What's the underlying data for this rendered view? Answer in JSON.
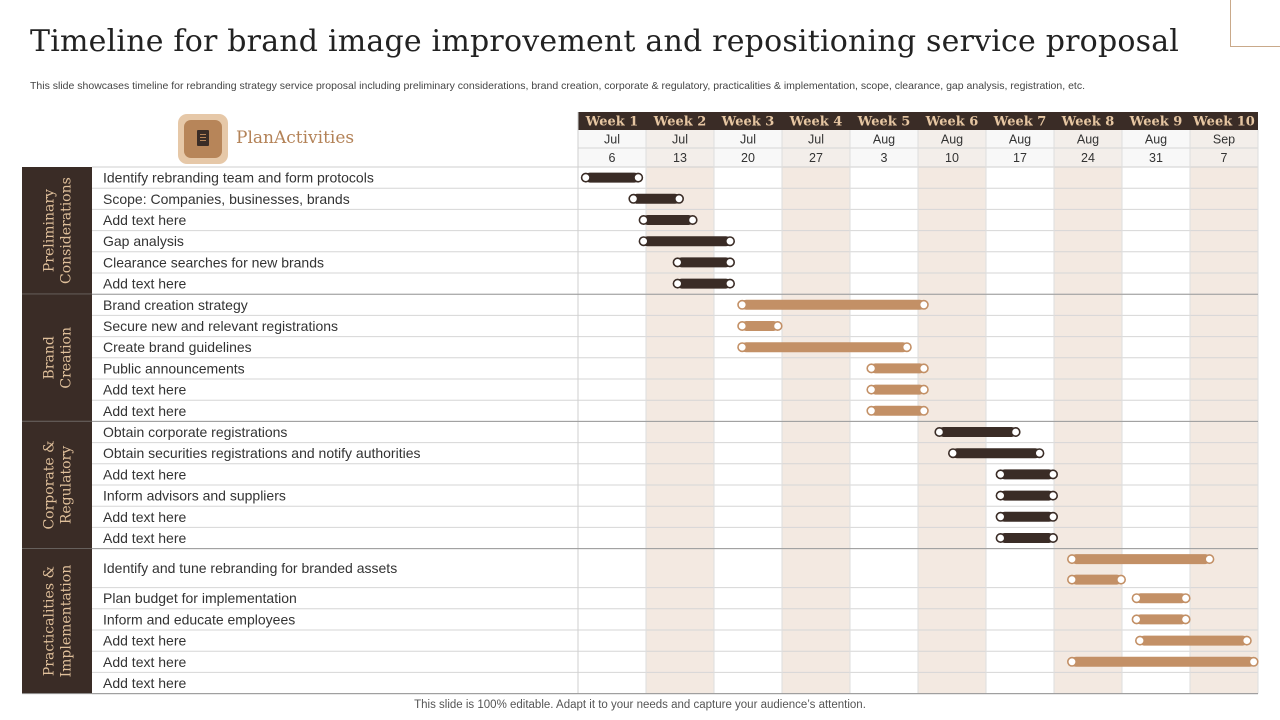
{
  "title": "Timeline for brand image improvement and repositioning service proposal",
  "subtitle": "This slide showcases timeline for rebranding strategy service proposal including preliminary considerations, brand creation, corporate & regulatory, practicalities & implementation, scope, clearance, gap analysis, registration, etc.",
  "plan_label": "PlanActivities",
  "plan_icon": "document-icon",
  "footer": "This slide is 100% editable. Adapt it to your needs and capture your audience’s attention.",
  "colors": {
    "dark": "#3a2c26",
    "accent": "#c39066",
    "shade": "#f3e9e1",
    "category_text": "#e0c09b"
  },
  "weeks": [
    {
      "label": "Week 1",
      "month": "Jul",
      "day": "6"
    },
    {
      "label": "Week 2",
      "month": "Jul",
      "day": "13"
    },
    {
      "label": "Week 3",
      "month": "Jul",
      "day": "20"
    },
    {
      "label": "Week 4",
      "month": "Jul",
      "day": "27"
    },
    {
      "label": "Week 5",
      "month": "Aug",
      "day": "3"
    },
    {
      "label": "Week 6",
      "month": "Aug",
      "day": "10"
    },
    {
      "label": "Week 7",
      "month": "Aug",
      "day": "17"
    },
    {
      "label": "Week 8",
      "month": "Aug",
      "day": "24"
    },
    {
      "label": "Week 9",
      "month": "Aug",
      "day": "31"
    },
    {
      "label": "Week 10",
      "month": "Sep",
      "day": "7"
    }
  ],
  "categories": [
    {
      "name": "Preliminary Considerations",
      "name_lines": [
        "Preliminary",
        "Considerations"
      ],
      "style": "dark",
      "tasks": [
        {
          "label": "Identify rebranding team and form protocols",
          "start": 1.1,
          "end": 1.9
        },
        {
          "label": "Scope: Companies, businesses, brands",
          "start": 1.8,
          "end": 2.5
        },
        {
          "label": "Add text here",
          "start": 1.95,
          "end": 2.7
        },
        {
          "label": "Gap analysis",
          "start": 1.95,
          "end": 3.25
        },
        {
          "label": "Clearance searches for new brands",
          "start": 2.45,
          "end": 3.25
        },
        {
          "label": "Add text here",
          "start": 2.45,
          "end": 3.25
        }
      ]
    },
    {
      "name": "Brand Creation",
      "name_lines": [
        "Brand",
        "Creation"
      ],
      "style": "accent",
      "tasks": [
        {
          "label": "Brand creation strategy",
          "start": 3.4,
          "end": 6.1
        },
        {
          "label": "Secure new and relevant registrations",
          "start": 3.4,
          "end": 3.95
        },
        {
          "label": "Create brand guidelines",
          "start": 3.4,
          "end": 5.85
        },
        {
          "label": "Public announcements",
          "start": 5.3,
          "end": 6.1
        },
        {
          "label": "Add text here",
          "start": 5.3,
          "end": 6.1
        },
        {
          "label": "Add text here",
          "start": 5.3,
          "end": 6.1
        }
      ]
    },
    {
      "name": "Corporate & Regulatory",
      "name_lines": [
        "Corporate &",
        "Regulatory"
      ],
      "style": "dark",
      "tasks": [
        {
          "label": "Obtain corporate registrations",
          "start": 6.3,
          "end": 7.45
        },
        {
          "label": "Obtain securities registrations and notify authorities",
          "start": 6.5,
          "end": 7.8
        },
        {
          "label": "Add text here",
          "start": 7.2,
          "end": 8.0
        },
        {
          "label": "Inform advisors and suppliers",
          "start": 7.2,
          "end": 8.0
        },
        {
          "label": "Add text here",
          "start": 7.2,
          "end": 8.0
        },
        {
          "label": "Add text here",
          "start": 7.2,
          "end": 8.0
        }
      ]
    },
    {
      "name": "Practicalities & Implementation",
      "name_lines": [
        "Practicalities &",
        "Implementation"
      ],
      "style": "accent",
      "tasks": [
        {
          "label": "Identify and tune rebranding for branded assets",
          "start": 8.25,
          "end": 10.3,
          "tall": true
        },
        {
          "label": "Plan budget for implementation",
          "start": 9.2,
          "end": 9.95
        },
        {
          "label": "Inform and educate employees",
          "start": 9.2,
          "end": 9.95
        },
        {
          "label": "Add text here",
          "start": 9.25,
          "end": 10.85
        },
        {
          "label": "Add text here",
          "start": 8.25,
          "end": 10.95
        },
        {
          "label": "Add text here",
          "start": null,
          "end": null
        }
      ]
    }
  ]
}
